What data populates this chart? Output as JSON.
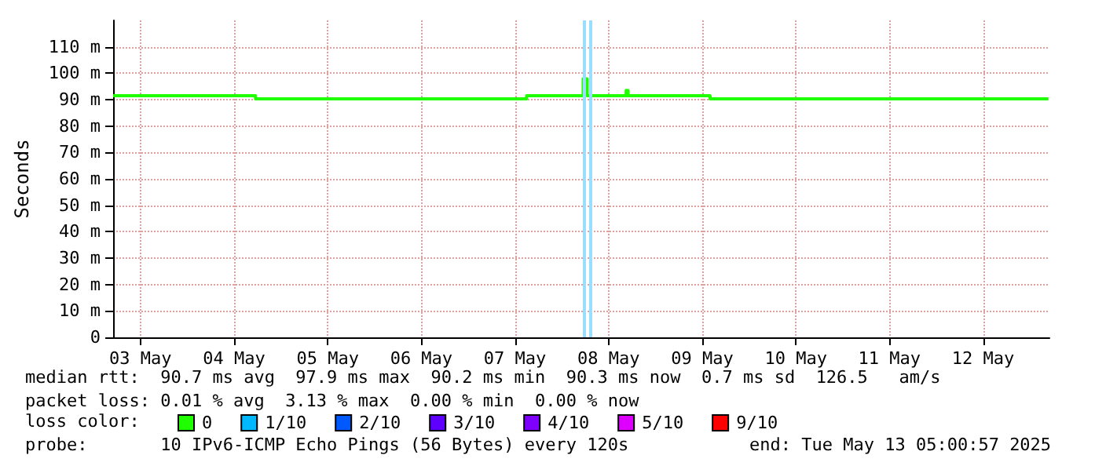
{
  "chart_data": {
    "type": "step",
    "ylabel": "Seconds",
    "x": [
      "2025-05-03T05:00",
      "2025-05-04T17:30",
      "2025-05-07T15:00",
      "2025-05-08T05:30",
      "2025-05-08T06:30",
      "2025-05-08T16:30",
      "2025-05-08T17:00",
      "2025-05-09T14:00",
      "2025-05-13T04:45"
    ],
    "series": [
      {
        "name": "0",
        "color": "#20ff00",
        "values": [
          91.5,
          90.3,
          91.5,
          97.9,
          91.5,
          93.5,
          91.5,
          90.3,
          90.3
        ]
      },
      {
        "name": "1/10",
        "color": "#00b8ff",
        "values": [
          null,
          null,
          null,
          null,
          null,
          null,
          null,
          null,
          null
        ]
      },
      {
        "name": "2/10",
        "color": "#0059ff",
        "values": [
          null,
          null,
          null,
          null,
          null,
          null,
          null,
          null,
          null
        ]
      },
      {
        "name": "3/10",
        "color": "#5e00ff",
        "values": [
          null,
          null,
          null,
          null,
          null,
          null,
          null,
          null,
          null
        ]
      },
      {
        "name": "4/10",
        "color": "#7e00ff",
        "values": [
          null,
          null,
          null,
          null,
          null,
          null,
          null,
          null,
          null
        ]
      },
      {
        "name": "5/10",
        "color": "#dd00ff",
        "values": [
          null,
          null,
          null,
          null,
          null,
          null,
          null,
          null,
          null
        ]
      },
      {
        "name": "9/10",
        "color": "#ff0000",
        "values": [
          null,
          null,
          null,
          null,
          null,
          null,
          null,
          null,
          null
        ]
      }
    ],
    "legend_title": "loss color:",
    "legend": "bottom",
    "xlim": [
      "2025-05-03T05:00",
      "2025-05-13T05:00"
    ],
    "xticks": [
      {
        "value": "2025-05-03T12:00",
        "label": "03 May"
      },
      {
        "value": "2025-05-04T12:00",
        "label": "04 May"
      },
      {
        "value": "2025-05-05T12:00",
        "label": "05 May"
      },
      {
        "value": "2025-05-06T12:00",
        "label": "06 May"
      },
      {
        "value": "2025-05-07T12:00",
        "label": "07 May"
      },
      {
        "value": "2025-05-08T12:00",
        "label": "08 May"
      },
      {
        "value": "2025-05-09T12:00",
        "label": "09 May"
      },
      {
        "value": "2025-05-10T12:00",
        "label": "10 May"
      },
      {
        "value": "2025-05-11T12:00",
        "label": "11 May"
      },
      {
        "value": "2025-05-12T12:00",
        "label": "12 May"
      }
    ],
    "ylim": [
      0,
      120
    ],
    "yticks": [
      0,
      {
        "value": 10,
        "label": "10 m"
      },
      {
        "value": 20,
        "label": "20 m"
      },
      {
        "value": 30,
        "label": "30 m"
      },
      {
        "value": 40,
        "label": "40 m"
      },
      {
        "value": 50,
        "label": "50 m"
      },
      {
        "value": 60,
        "label": "60 m"
      },
      {
        "value": 70,
        "label": "70 m"
      },
      {
        "value": 80,
        "label": "80 m"
      },
      {
        "value": 90,
        "label": "90 m"
      },
      {
        "value": 100,
        "label": "100 m"
      },
      {
        "value": 110,
        "label": "110 m"
      }
    ],
    "ref_lines": [
      {
        "axis": "x",
        "value": "2025-05-08T05:45",
        "color": "#99ddff"
      },
      {
        "axis": "x",
        "value": "2025-05-08T07:30",
        "color": "#99ddff"
      }
    ],
    "grid": true,
    "annotations": [
      "median rtt:  90.7 ms avg  97.9 ms max  90.2 ms min  90.3 ms now  0.7 ms sd  126.5   am/s",
      "packet loss: 0.01 % avg  3.13 % max  0.00 % min  0.00 % now",
      "probe:       10 IPv6-ICMP Echo Pings (56 Bytes) every 120s",
      "end: Tue May 13 05:00:57 2025"
    ]
  }
}
